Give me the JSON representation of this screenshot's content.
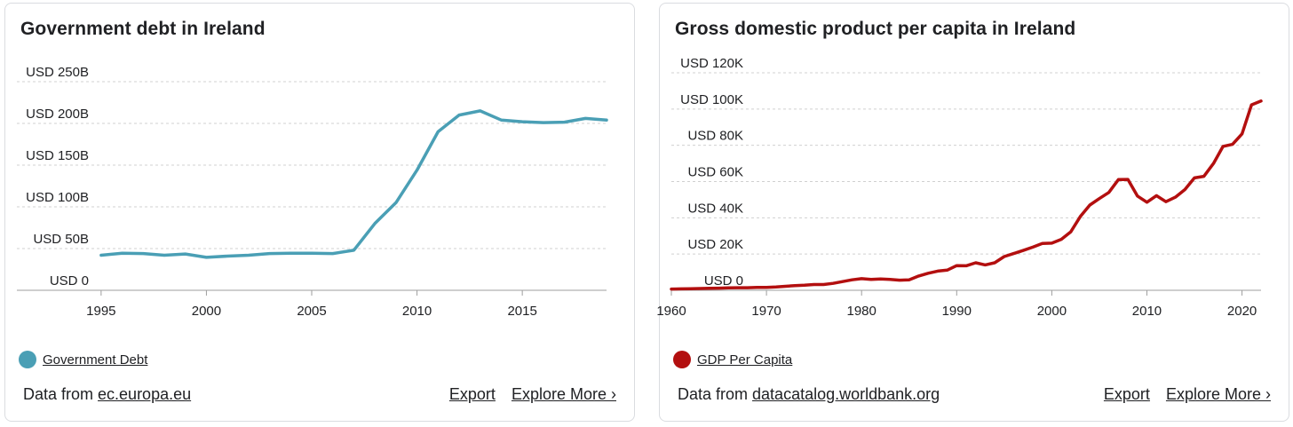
{
  "charts": [
    {
      "title": "Government debt in Ireland",
      "legend_label": "Government Debt",
      "source_prefix": "Data from ",
      "source_link": "ec.europa.eu",
      "export_label": "Export",
      "explore_label": "Explore More ›",
      "color": "#4a9fb5"
    },
    {
      "title": "Gross domestic product per capita in Ireland",
      "legend_label": "GDP Per Capita",
      "source_prefix": "Data from ",
      "source_link": "datacatalog.worldbank.org",
      "export_label": "Export",
      "explore_label": "Explore More ›",
      "color": "#b30f0f"
    }
  ],
  "chart_data": [
    {
      "type": "line",
      "title": "Government debt in Ireland",
      "xlabel": "",
      "ylabel": "",
      "xlim": [
        1991,
        2019
      ],
      "ylim": [
        0,
        250
      ],
      "y_ticks": [
        0,
        50,
        100,
        150,
        200,
        250
      ],
      "y_tick_labels": [
        "USD 0",
        "USD 50B",
        "USD 100B",
        "USD 150B",
        "USD 200B",
        "USD 250B"
      ],
      "x_ticks": [
        1995,
        2000,
        2005,
        2010,
        2015
      ],
      "x_tick_labels": [
        "1995",
        "2000",
        "2005",
        "2010",
        "2015"
      ],
      "grid": true,
      "legend_position": "bottom-left",
      "series": [
        {
          "name": "Government Debt",
          "color": "#4a9fb5",
          "x": [
            1995,
            1996,
            1997,
            1998,
            1999,
            2000,
            2001,
            2002,
            2003,
            2004,
            2005,
            2006,
            2007,
            2008,
            2009,
            2010,
            2011,
            2012,
            2013,
            2014,
            2015,
            2016,
            2017,
            2018,
            2019
          ],
          "y": [
            42,
            44.5,
            44,
            42,
            43.5,
            39.5,
            41,
            42,
            44,
            44.5,
            44.5,
            44,
            48,
            80,
            105,
            144,
            190,
            210,
            215,
            204,
            202,
            201,
            201.5,
            206,
            204
          ]
        }
      ]
    },
    {
      "type": "line",
      "title": "Gross domestic product per capita in Ireland",
      "xlabel": "",
      "ylabel": "",
      "xlim": [
        1960,
        2022
      ],
      "ylim": [
        0,
        120
      ],
      "y_ticks": [
        0,
        20,
        40,
        60,
        80,
        100,
        120
      ],
      "y_tick_labels": [
        "USD 0",
        "USD 20K",
        "USD 40K",
        "USD 60K",
        "USD 80K",
        "USD 100K",
        "USD 120K"
      ],
      "x_ticks": [
        1960,
        1970,
        1980,
        1990,
        2000,
        2010,
        2020
      ],
      "x_tick_labels": [
        "1960",
        "1970",
        "1980",
        "1990",
        "2000",
        "2010",
        "2020"
      ],
      "grid": true,
      "legend_position": "bottom-left",
      "series": [
        {
          "name": "GDP Per Capita",
          "color": "#b30f0f",
          "x": [
            1960,
            1961,
            1962,
            1963,
            1964,
            1965,
            1966,
            1967,
            1968,
            1969,
            1970,
            1971,
            1972,
            1973,
            1974,
            1975,
            1976,
            1977,
            1978,
            1979,
            1980,
            1981,
            1982,
            1983,
            1984,
            1985,
            1986,
            1987,
            1988,
            1989,
            1990,
            1991,
            1992,
            1993,
            1994,
            1995,
            1996,
            1997,
            1998,
            1999,
            2000,
            2001,
            2002,
            2003,
            2004,
            2005,
            2006,
            2007,
            2008,
            2009,
            2010,
            2011,
            2012,
            2013,
            2014,
            2015,
            2016,
            2017,
            2018,
            2019,
            2020,
            2021,
            2022
          ],
          "y": [
            0.7,
            0.8,
            0.9,
            1.0,
            1.1,
            1.2,
            1.3,
            1.4,
            1.4,
            1.6,
            1.6,
            1.8,
            2.2,
            2.6,
            2.8,
            3.2,
            3.2,
            3.8,
            4.8,
            5.8,
            6.4,
            6.0,
            6.2,
            6.0,
            5.6,
            5.8,
            7.9,
            9.4,
            10.6,
            11.1,
            13.6,
            13.5,
            15.2,
            14.0,
            15.2,
            18.6,
            20.3,
            22.0,
            23.8,
            25.8,
            26.0,
            28.1,
            32.3,
            40.7,
            47.0,
            50.6,
            54.0,
            61.1,
            61.2,
            52.0,
            48.6,
            52.2,
            48.9,
            51.4,
            55.6,
            62.0,
            62.9,
            70.0,
            79.4,
            80.5,
            86.3,
            102.3,
            104.4
          ]
        }
      ]
    }
  ]
}
